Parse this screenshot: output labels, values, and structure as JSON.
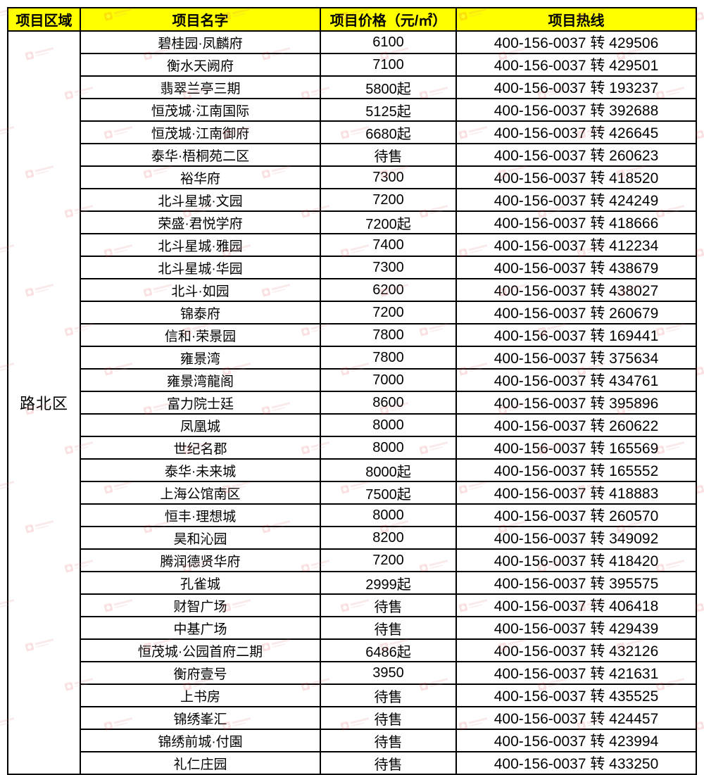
{
  "chart_data": {
    "type": "table",
    "columns": [
      {
        "label": "项目区域"
      },
      {
        "label": "项目名字"
      },
      {
        "label": "项目价格（元/㎡）"
      },
      {
        "label": "项目热线"
      }
    ],
    "region_label": "路北区",
    "rows": [
      {
        "name": "碧桂园·凤麟府",
        "price": "6100",
        "hotline": "400-156-0037 转 429506"
      },
      {
        "name": "衡水天阙府",
        "price": "7100",
        "hotline": "400-156-0037 转 429501"
      },
      {
        "name": "翡翠兰亭三期",
        "price": "5800起",
        "hotline": "400-156-0037 转 193237"
      },
      {
        "name": "恒茂城·江南国际",
        "price": "5125起",
        "hotline": "400-156-0037 转 392688"
      },
      {
        "name": "恒茂城·江南御府",
        "price": "6680起",
        "hotline": "400-156-0037 转 426645"
      },
      {
        "name": "泰华·梧桐苑二区",
        "price": "待售",
        "hotline": "400-156-0037 转 260623"
      },
      {
        "name": "裕华府",
        "price": "7300",
        "hotline": "400-156-0037 转 418520"
      },
      {
        "name": "北斗星城·文园",
        "price": "7200",
        "hotline": "400-156-0037 转 424249"
      },
      {
        "name": "荣盛·君悦学府",
        "price": "7200起",
        "hotline": "400-156-0037 转 418666"
      },
      {
        "name": "北斗星城·雅园",
        "price": "7400",
        "hotline": "400-156-0037 转 412234"
      },
      {
        "name": "北斗星城·华园",
        "price": "7300",
        "hotline": "400-156-0037 转 438679"
      },
      {
        "name": "北斗·如园",
        "price": "6200",
        "hotline": "400-156-0037 转 438027"
      },
      {
        "name": "锦泰府",
        "price": "7200",
        "hotline": "400-156-0037 转 260679"
      },
      {
        "name": "信和·荣景园",
        "price": "7800",
        "hotline": "400-156-0037 转 169441"
      },
      {
        "name": "雍景湾",
        "price": "7800",
        "hotline": "400-156-0037 转 375634"
      },
      {
        "name": "雍景湾龍阁",
        "price": "7000",
        "hotline": "400-156-0037 转 434761"
      },
      {
        "name": "富力院士廷",
        "price": "8600",
        "hotline": "400-156-0037 转 395896"
      },
      {
        "name": "凤凰城",
        "price": "8000",
        "hotline": "400-156-0037 转 260622"
      },
      {
        "name": "世纪名郡",
        "price": "8000",
        "hotline": "400-156-0037 转 165569"
      },
      {
        "name": "泰华·未来城",
        "price": "8000起",
        "hotline": "400-156-0037 转 165552"
      },
      {
        "name": "上海公馆南区",
        "price": "7500起",
        "hotline": "400-156-0037 转 418883"
      },
      {
        "name": "恒丰·理想城",
        "price": "8000",
        "hotline": "400-156-0037 转 260570"
      },
      {
        "name": "昊和沁园",
        "price": "8200",
        "hotline": "400-156-0037 转 349092"
      },
      {
        "name": "腾润德贤华府",
        "price": "7200",
        "hotline": "400-156-0037 转 418420"
      },
      {
        "name": "孔雀城",
        "price": "2999起",
        "hotline": "400-156-0037 转 395575"
      },
      {
        "name": "财智广场",
        "price": "待售",
        "hotline": "400-156-0037 转 406418"
      },
      {
        "name": "中基广场",
        "price": "待售",
        "hotline": "400-156-0037 转 429439"
      },
      {
        "name": "恒茂城·公园首府二期",
        "price": "6486起",
        "hotline": "400-156-0037 转 432126"
      },
      {
        "name": "衡府壹号",
        "price": "3950",
        "hotline": "400-156-0037 转 421631"
      },
      {
        "name": "上书房",
        "price": "待售",
        "hotline": "400-156-0037 转 435525"
      },
      {
        "name": "锦绣峯汇",
        "price": "待售",
        "hotline": "400-156-0037 转 424457"
      },
      {
        "name": "锦绣前城·付園",
        "price": "待售",
        "hotline": "400-156-0037 转 423994"
      },
      {
        "name": "礼仁庄园",
        "price": "待售",
        "hotline": "400-156-0037 转 433250"
      }
    ]
  },
  "colors": {
    "header_bg": "#ffff00",
    "border": "#000000",
    "text": "#000000",
    "watermark_red": "#d93a3a",
    "watermark_pink": "#e59a9a"
  }
}
